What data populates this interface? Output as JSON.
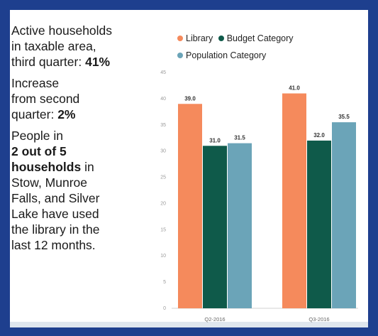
{
  "text": {
    "p1_line1": "Active households",
    "p1_line2": "in taxable area,",
    "p1_line3": "third quarter:",
    "p1_value": "41%",
    "p2_line1": "Increase",
    "p2_line2": "from second",
    "p2_line3": "quarter:",
    "p2_value": "2%",
    "p3_line1": "People in",
    "p3_bold1": "2 out of 5",
    "p3_bold2": "households",
    "p3_rest1": "in",
    "p3_line4": "Stow, Munroe",
    "p3_line5": "Falls, and Silver",
    "p3_line6": "Lake have used",
    "p3_line7": "the library in the",
    "p3_line8": "last 12 months."
  },
  "chart_data": {
    "type": "bar",
    "categories": [
      "Q2-2016",
      "Q3-2016"
    ],
    "series": [
      {
        "name": "Library",
        "values": [
          39.0,
          41.0
        ],
        "color": "#f58a5c",
        "labels": [
          "39.0",
          "41.0"
        ]
      },
      {
        "name": "Budget Category",
        "values": [
          31.0,
          32.0
        ],
        "color": "#0f5a4a",
        "labels": [
          "31.0",
          "32.0"
        ]
      },
      {
        "name": "Population Category",
        "values": [
          31.5,
          35.5
        ],
        "color": "#6ba4b8",
        "labels": [
          "31.5",
          "35.5"
        ]
      }
    ],
    "yticks": [
      "0",
      "5",
      "10",
      "15",
      "20",
      "25",
      "30",
      "35",
      "40",
      "45"
    ],
    "ylim": [
      0,
      45
    ],
    "title": "",
    "xlabel": "",
    "ylabel": "",
    "legend_position": "top"
  }
}
